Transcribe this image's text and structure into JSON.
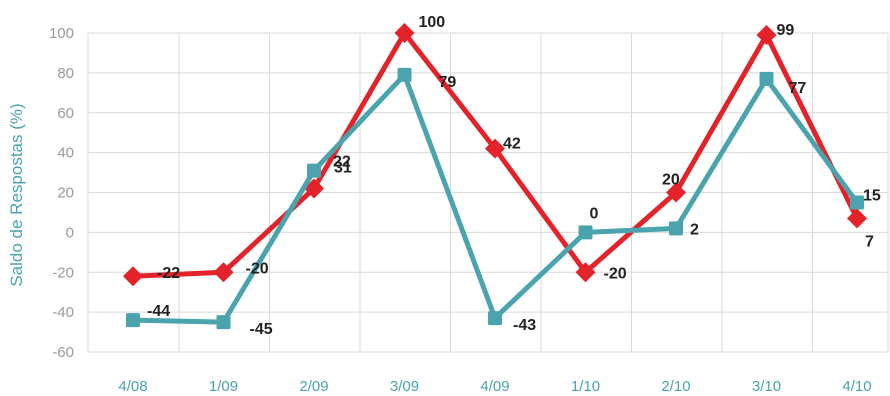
{
  "chart_data": {
    "type": "line",
    "ylabel": "Saldo de Respostas (%)",
    "xlabel": "",
    "ylim": [
      -60,
      100
    ],
    "yticks": [
      -60,
      -40,
      -20,
      0,
      20,
      40,
      60,
      80,
      100
    ],
    "categories": [
      "4/08",
      "1/09",
      "2/09",
      "3/09",
      "4/09",
      "1/10",
      "2/10",
      "3/10",
      "4/10"
    ],
    "grid": true,
    "series": [
      {
        "color": "#e4222a",
        "marker": "diamond",
        "values": [
          -22,
          -20,
          22,
          100,
          42,
          -20,
          20,
          99,
          7
        ],
        "labels": [
          "-22",
          "-20",
          "22",
          "100",
          "42",
          "-20",
          "20",
          "99",
          "7"
        ]
      },
      {
        "color": "#4aa3ad",
        "marker": "square",
        "values": [
          -44,
          -45,
          31,
          79,
          -43,
          0,
          2,
          77,
          15
        ],
        "labels": [
          "-44",
          "-45",
          "31",
          "79",
          "-43",
          "0",
          "2",
          "77",
          "15"
        ]
      }
    ]
  }
}
